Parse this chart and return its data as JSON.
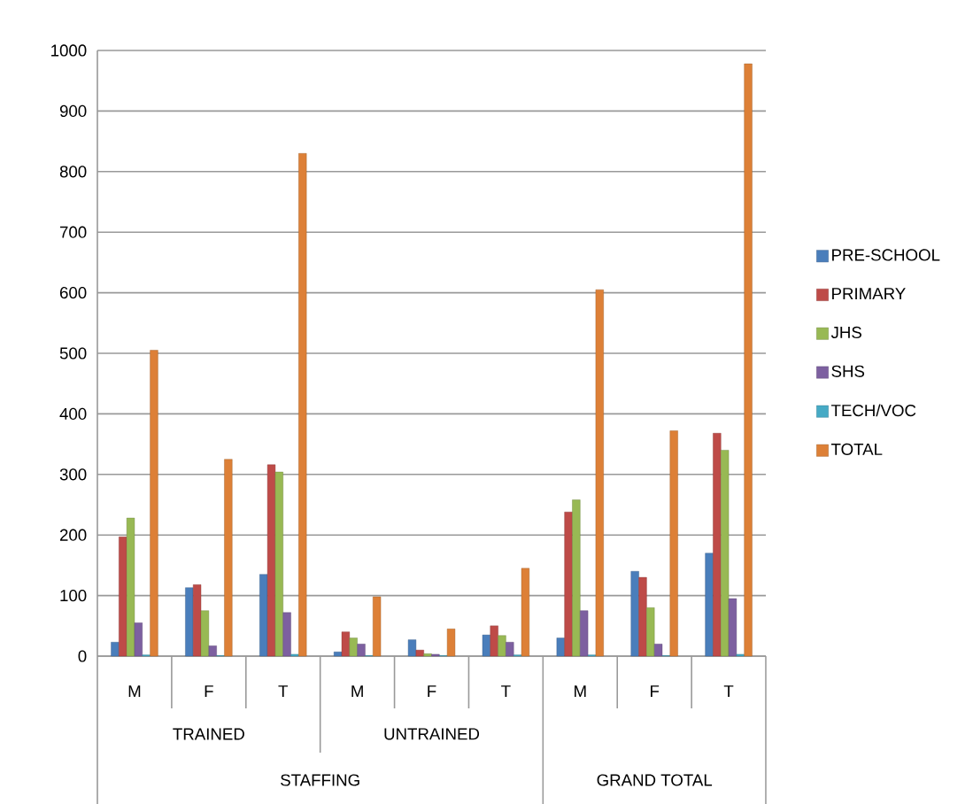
{
  "chart_data": {
    "type": "bar",
    "categories": [
      "M",
      "F",
      "T",
      "M",
      "F",
      "T",
      "M",
      "F",
      "T"
    ],
    "series": [
      {
        "name": "PRE-SCHOOL",
        "color": "#4a7ebb",
        "values": [
          23,
          113,
          135,
          7,
          27,
          35,
          30,
          140,
          170
        ]
      },
      {
        "name": "PRIMARY",
        "color": "#be4b48",
        "values": [
          197,
          118,
          316,
          40,
          10,
          50,
          238,
          130,
          368
        ]
      },
      {
        "name": "JHS",
        "color": "#98b954",
        "values": [
          228,
          75,
          304,
          30,
          4,
          34,
          258,
          80,
          340
        ]
      },
      {
        "name": "SHS",
        "color": "#7d60a0",
        "values": [
          55,
          17,
          72,
          20,
          3,
          23,
          75,
          20,
          95
        ]
      },
      {
        "name": "TECH/VOC",
        "color": "#46aac5",
        "values": [
          2,
          1,
          3,
          1,
          1,
          2,
          2,
          1,
          3
        ]
      },
      {
        "name": "TOTAL",
        "color": "#dd8037",
        "values": [
          505,
          325,
          830,
          98,
          45,
          145,
          605,
          372,
          978
        ]
      }
    ],
    "annotations": [
      "TRAINED",
      "UNTRAINED",
      "STAFFING",
      "GRAND TOTAL"
    ],
    "ylim": [
      0,
      1000
    ],
    "yticks": [
      0,
      100,
      200,
      300,
      400,
      500,
      600,
      700,
      800,
      900,
      1000
    ],
    "grid": "y",
    "legend": "right"
  }
}
